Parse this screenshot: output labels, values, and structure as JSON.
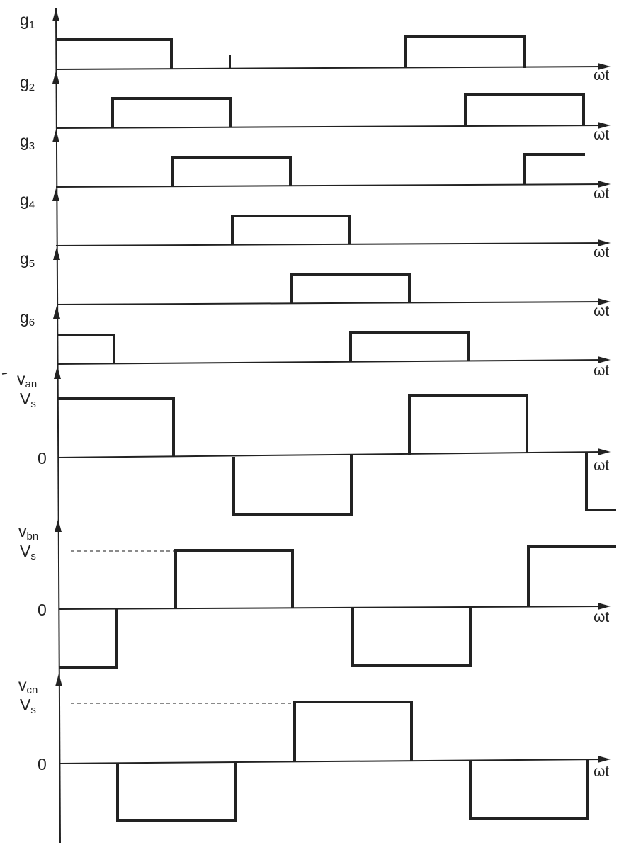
{
  "axis_label": "ωt",
  "level_high": "V",
  "level_high_sub": "s",
  "level_zero": "0",
  "gate_signals": [
    {
      "name": "g",
      "sub": "1"
    },
    {
      "name": "g",
      "sub": "2"
    },
    {
      "name": "g",
      "sub": "3"
    },
    {
      "name": "g",
      "sub": "4"
    },
    {
      "name": "g",
      "sub": "5"
    },
    {
      "name": "g",
      "sub": "6"
    }
  ],
  "phase_voltages": [
    {
      "name": "v",
      "sub": "an"
    },
    {
      "name": "v",
      "sub": "bn"
    },
    {
      "name": "v",
      "sub": "cn"
    }
  ]
}
